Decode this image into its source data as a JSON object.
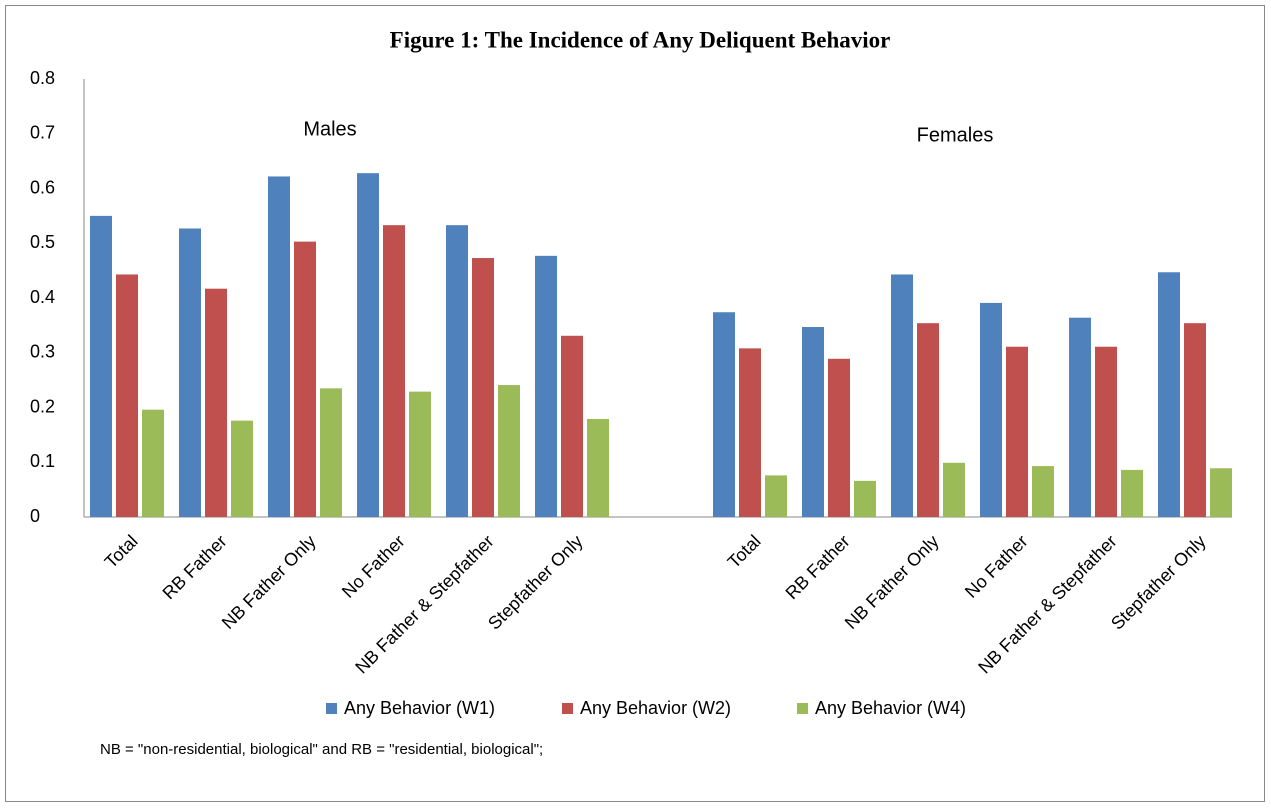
{
  "chart_data": {
    "type": "bar",
    "title": "Figure 1:  The Incidence of Any Deliquent Behavior",
    "annotations": [
      "Males",
      "Females"
    ],
    "note": "NB = \"non-residential, biological\" and RB = \"residential, biological\";",
    "categories": [
      "Total",
      "RB Father",
      "NB Father Only",
      "No Father",
      "NB Father & Stepfather",
      "Stepfather Only",
      null,
      "Total",
      "RB Father",
      "NB Father Only",
      "No Father",
      "NB Father & Stepfather",
      "Stepfather Only"
    ],
    "series": [
      {
        "name": "Any Behavior (W1)",
        "color": "#4f81bd",
        "values": [
          0.55,
          0.527,
          0.622,
          0.628,
          0.533,
          0.477,
          null,
          0.374,
          0.347,
          0.443,
          0.391,
          0.364,
          0.447
        ]
      },
      {
        "name": "Any Behavior (W2)",
        "color": "#c0504d",
        "values": [
          0.443,
          0.417,
          0.503,
          0.533,
          0.473,
          0.331,
          null,
          0.308,
          0.289,
          0.354,
          0.311,
          0.311,
          0.354
        ]
      },
      {
        "name": "Any Behavior (W4)",
        "color": "#9bbb59",
        "values": [
          0.196,
          0.176,
          0.235,
          0.229,
          0.241,
          0.179,
          null,
          0.076,
          0.066,
          0.099,
          0.093,
          0.086,
          0.089
        ]
      }
    ],
    "ylim": [
      0,
      0.8
    ],
    "yticks": [
      0,
      0.1,
      0.2,
      0.3,
      0.4,
      0.5,
      0.6,
      0.7,
      0.8
    ],
    "grid": false,
    "legend": "bottom"
  }
}
